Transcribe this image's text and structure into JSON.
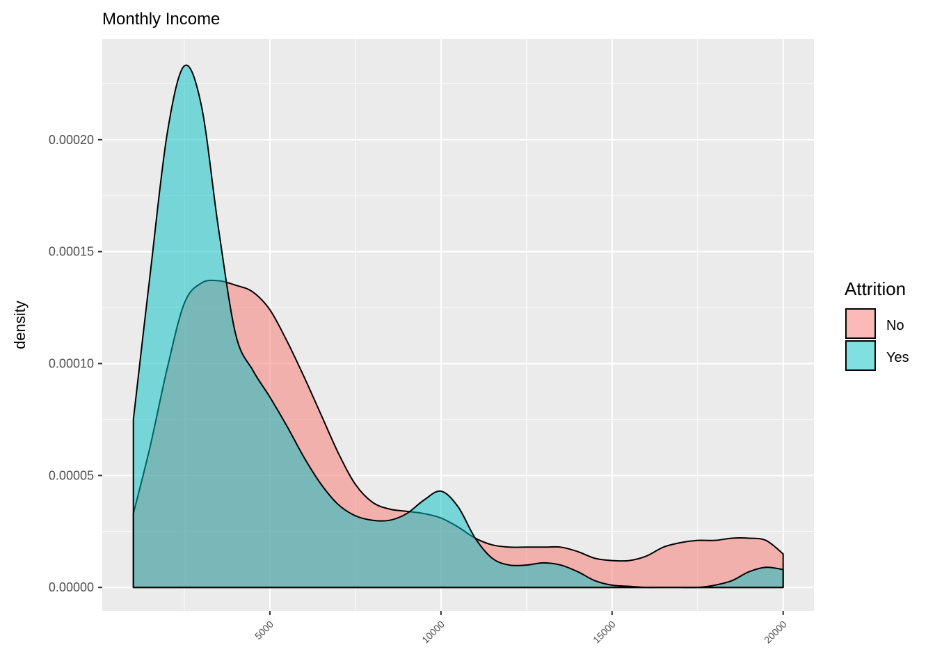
{
  "chart_data": {
    "type": "area",
    "subtype": "density",
    "title": "Monthly Income",
    "xlabel": "",
    "ylabel": "density",
    "xlim": [
      100,
      20900
    ],
    "ylim": [
      -1.05e-05,
      0.000245
    ],
    "xticks": [
      5000,
      10000,
      15000,
      20000
    ],
    "yticks": [
      0.0,
      5e-05,
      0.0001,
      0.00015,
      0.0002
    ],
    "ytick_labels": [
      "0.00000",
      "0.00005",
      "0.00010",
      "0.00015",
      "0.00020"
    ],
    "xtick_labels": [
      "5000",
      "10000",
      "15000",
      "20000"
    ],
    "grid": true,
    "legend": {
      "title": "Attrition",
      "position": "right"
    },
    "series": [
      {
        "name": "No",
        "color": "#F8766D",
        "x": [
          1009,
          1500,
          2000,
          2500,
          3000,
          3500,
          4000,
          4500,
          5000,
          5500,
          6000,
          6500,
          7000,
          7500,
          8000,
          8500,
          9000,
          9500,
          10000,
          10500,
          11000,
          11500,
          12000,
          12500,
          13000,
          13500,
          14000,
          14500,
          15000,
          15500,
          16000,
          16500,
          17000,
          17500,
          18000,
          18500,
          19000,
          19500,
          19999
        ],
        "y": [
          3.3e-05,
          6.3e-05,
          9.8e-05,
          0.000127,
          0.000136,
          0.000137,
          0.000135,
          0.000132,
          0.000124,
          0.00011,
          9.4e-05,
          7.7e-05,
          6e-05,
          4.6e-05,
          3.8e-05,
          3.5e-05,
          3.4e-05,
          3.3e-05,
          3.1e-05,
          2.7e-05,
          2.2e-05,
          1.9e-05,
          1.8e-05,
          1.8e-05,
          1.8e-05,
          1.8e-05,
          1.6e-05,
          1.3e-05,
          1.2e-05,
          1.2e-05,
          1.4e-05,
          1.8e-05,
          2e-05,
          2.1e-05,
          2.1e-05,
          2.2e-05,
          2.2e-05,
          2.1e-05,
          1.5e-05
        ]
      },
      {
        "name": "Yes",
        "color": "#00BFC4",
        "x": [
          1009,
          1500,
          2000,
          2500,
          3000,
          3500,
          4000,
          4500,
          5000,
          5500,
          6000,
          6500,
          7000,
          7500,
          8000,
          8500,
          9000,
          9500,
          10000,
          10500,
          11000,
          11500,
          12000,
          12500,
          13000,
          13500,
          14000,
          14500,
          15000,
          15500,
          16000,
          16500,
          17000,
          17500,
          18000,
          18500,
          19000,
          19500,
          19999
        ],
        "y": [
          7.5e-05,
          0.00014,
          0.000203,
          0.000233,
          0.000215,
          0.00016,
          0.000113,
          9.7e-05,
          8.5e-05,
          7.2e-05,
          5.8e-05,
          4.6e-05,
          3.7e-05,
          3.2e-05,
          3e-05,
          3e-05,
          3.3e-05,
          3.9e-05,
          4.3e-05,
          3.6e-05,
          2.2e-05,
          1.3e-05,
          1e-05,
          1e-05,
          1.1e-05,
          1e-05,
          7e-06,
          3e-06,
          1e-06,
          5e-07,
          0.0,
          0.0,
          0.0,
          0.0,
          1e-06,
          3e-06,
          7e-06,
          9e-06,
          8e-06
        ]
      }
    ]
  }
}
